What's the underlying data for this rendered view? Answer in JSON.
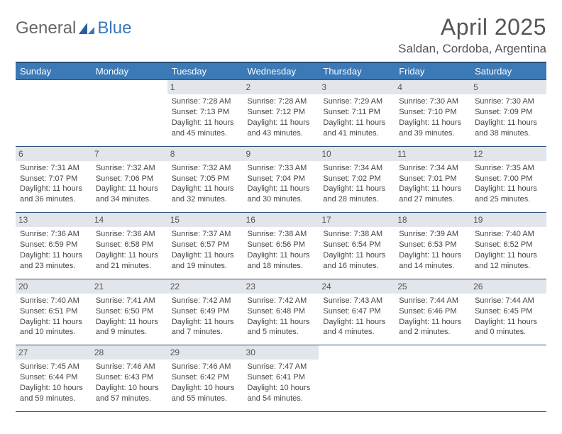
{
  "logo": {
    "general": "General",
    "blue": "Blue"
  },
  "title": "April 2025",
  "location": "Saldan, Cordoba, Argentina",
  "colors": {
    "header_bg": "#3b79b7",
    "header_border": "#2a4f7a",
    "daynum_bg": "#e2e6ea",
    "text": "#444444",
    "title_text": "#555555"
  },
  "weekdays": [
    "Sunday",
    "Monday",
    "Tuesday",
    "Wednesday",
    "Thursday",
    "Friday",
    "Saturday"
  ],
  "weeks": [
    [
      null,
      null,
      {
        "n": "1",
        "sr": "Sunrise: 7:28 AM",
        "ss": "Sunset: 7:13 PM",
        "dl": "Daylight: 11 hours and 45 minutes."
      },
      {
        "n": "2",
        "sr": "Sunrise: 7:28 AM",
        "ss": "Sunset: 7:12 PM",
        "dl": "Daylight: 11 hours and 43 minutes."
      },
      {
        "n": "3",
        "sr": "Sunrise: 7:29 AM",
        "ss": "Sunset: 7:11 PM",
        "dl": "Daylight: 11 hours and 41 minutes."
      },
      {
        "n": "4",
        "sr": "Sunrise: 7:30 AM",
        "ss": "Sunset: 7:10 PM",
        "dl": "Daylight: 11 hours and 39 minutes."
      },
      {
        "n": "5",
        "sr": "Sunrise: 7:30 AM",
        "ss": "Sunset: 7:09 PM",
        "dl": "Daylight: 11 hours and 38 minutes."
      }
    ],
    [
      {
        "n": "6",
        "sr": "Sunrise: 7:31 AM",
        "ss": "Sunset: 7:07 PM",
        "dl": "Daylight: 11 hours and 36 minutes."
      },
      {
        "n": "7",
        "sr": "Sunrise: 7:32 AM",
        "ss": "Sunset: 7:06 PM",
        "dl": "Daylight: 11 hours and 34 minutes."
      },
      {
        "n": "8",
        "sr": "Sunrise: 7:32 AM",
        "ss": "Sunset: 7:05 PM",
        "dl": "Daylight: 11 hours and 32 minutes."
      },
      {
        "n": "9",
        "sr": "Sunrise: 7:33 AM",
        "ss": "Sunset: 7:04 PM",
        "dl": "Daylight: 11 hours and 30 minutes."
      },
      {
        "n": "10",
        "sr": "Sunrise: 7:34 AM",
        "ss": "Sunset: 7:02 PM",
        "dl": "Daylight: 11 hours and 28 minutes."
      },
      {
        "n": "11",
        "sr": "Sunrise: 7:34 AM",
        "ss": "Sunset: 7:01 PM",
        "dl": "Daylight: 11 hours and 27 minutes."
      },
      {
        "n": "12",
        "sr": "Sunrise: 7:35 AM",
        "ss": "Sunset: 7:00 PM",
        "dl": "Daylight: 11 hours and 25 minutes."
      }
    ],
    [
      {
        "n": "13",
        "sr": "Sunrise: 7:36 AM",
        "ss": "Sunset: 6:59 PM",
        "dl": "Daylight: 11 hours and 23 minutes."
      },
      {
        "n": "14",
        "sr": "Sunrise: 7:36 AM",
        "ss": "Sunset: 6:58 PM",
        "dl": "Daylight: 11 hours and 21 minutes."
      },
      {
        "n": "15",
        "sr": "Sunrise: 7:37 AM",
        "ss": "Sunset: 6:57 PM",
        "dl": "Daylight: 11 hours and 19 minutes."
      },
      {
        "n": "16",
        "sr": "Sunrise: 7:38 AM",
        "ss": "Sunset: 6:56 PM",
        "dl": "Daylight: 11 hours and 18 minutes."
      },
      {
        "n": "17",
        "sr": "Sunrise: 7:38 AM",
        "ss": "Sunset: 6:54 PM",
        "dl": "Daylight: 11 hours and 16 minutes."
      },
      {
        "n": "18",
        "sr": "Sunrise: 7:39 AM",
        "ss": "Sunset: 6:53 PM",
        "dl": "Daylight: 11 hours and 14 minutes."
      },
      {
        "n": "19",
        "sr": "Sunrise: 7:40 AM",
        "ss": "Sunset: 6:52 PM",
        "dl": "Daylight: 11 hours and 12 minutes."
      }
    ],
    [
      {
        "n": "20",
        "sr": "Sunrise: 7:40 AM",
        "ss": "Sunset: 6:51 PM",
        "dl": "Daylight: 11 hours and 10 minutes."
      },
      {
        "n": "21",
        "sr": "Sunrise: 7:41 AM",
        "ss": "Sunset: 6:50 PM",
        "dl": "Daylight: 11 hours and 9 minutes."
      },
      {
        "n": "22",
        "sr": "Sunrise: 7:42 AM",
        "ss": "Sunset: 6:49 PM",
        "dl": "Daylight: 11 hours and 7 minutes."
      },
      {
        "n": "23",
        "sr": "Sunrise: 7:42 AM",
        "ss": "Sunset: 6:48 PM",
        "dl": "Daylight: 11 hours and 5 minutes."
      },
      {
        "n": "24",
        "sr": "Sunrise: 7:43 AM",
        "ss": "Sunset: 6:47 PM",
        "dl": "Daylight: 11 hours and 4 minutes."
      },
      {
        "n": "25",
        "sr": "Sunrise: 7:44 AM",
        "ss": "Sunset: 6:46 PM",
        "dl": "Daylight: 11 hours and 2 minutes."
      },
      {
        "n": "26",
        "sr": "Sunrise: 7:44 AM",
        "ss": "Sunset: 6:45 PM",
        "dl": "Daylight: 11 hours and 0 minutes."
      }
    ],
    [
      {
        "n": "27",
        "sr": "Sunrise: 7:45 AM",
        "ss": "Sunset: 6:44 PM",
        "dl": "Daylight: 10 hours and 59 minutes."
      },
      {
        "n": "28",
        "sr": "Sunrise: 7:46 AM",
        "ss": "Sunset: 6:43 PM",
        "dl": "Daylight: 10 hours and 57 minutes."
      },
      {
        "n": "29",
        "sr": "Sunrise: 7:46 AM",
        "ss": "Sunset: 6:42 PM",
        "dl": "Daylight: 10 hours and 55 minutes."
      },
      {
        "n": "30",
        "sr": "Sunrise: 7:47 AM",
        "ss": "Sunset: 6:41 PM",
        "dl": "Daylight: 10 hours and 54 minutes."
      },
      null,
      null,
      null
    ]
  ]
}
